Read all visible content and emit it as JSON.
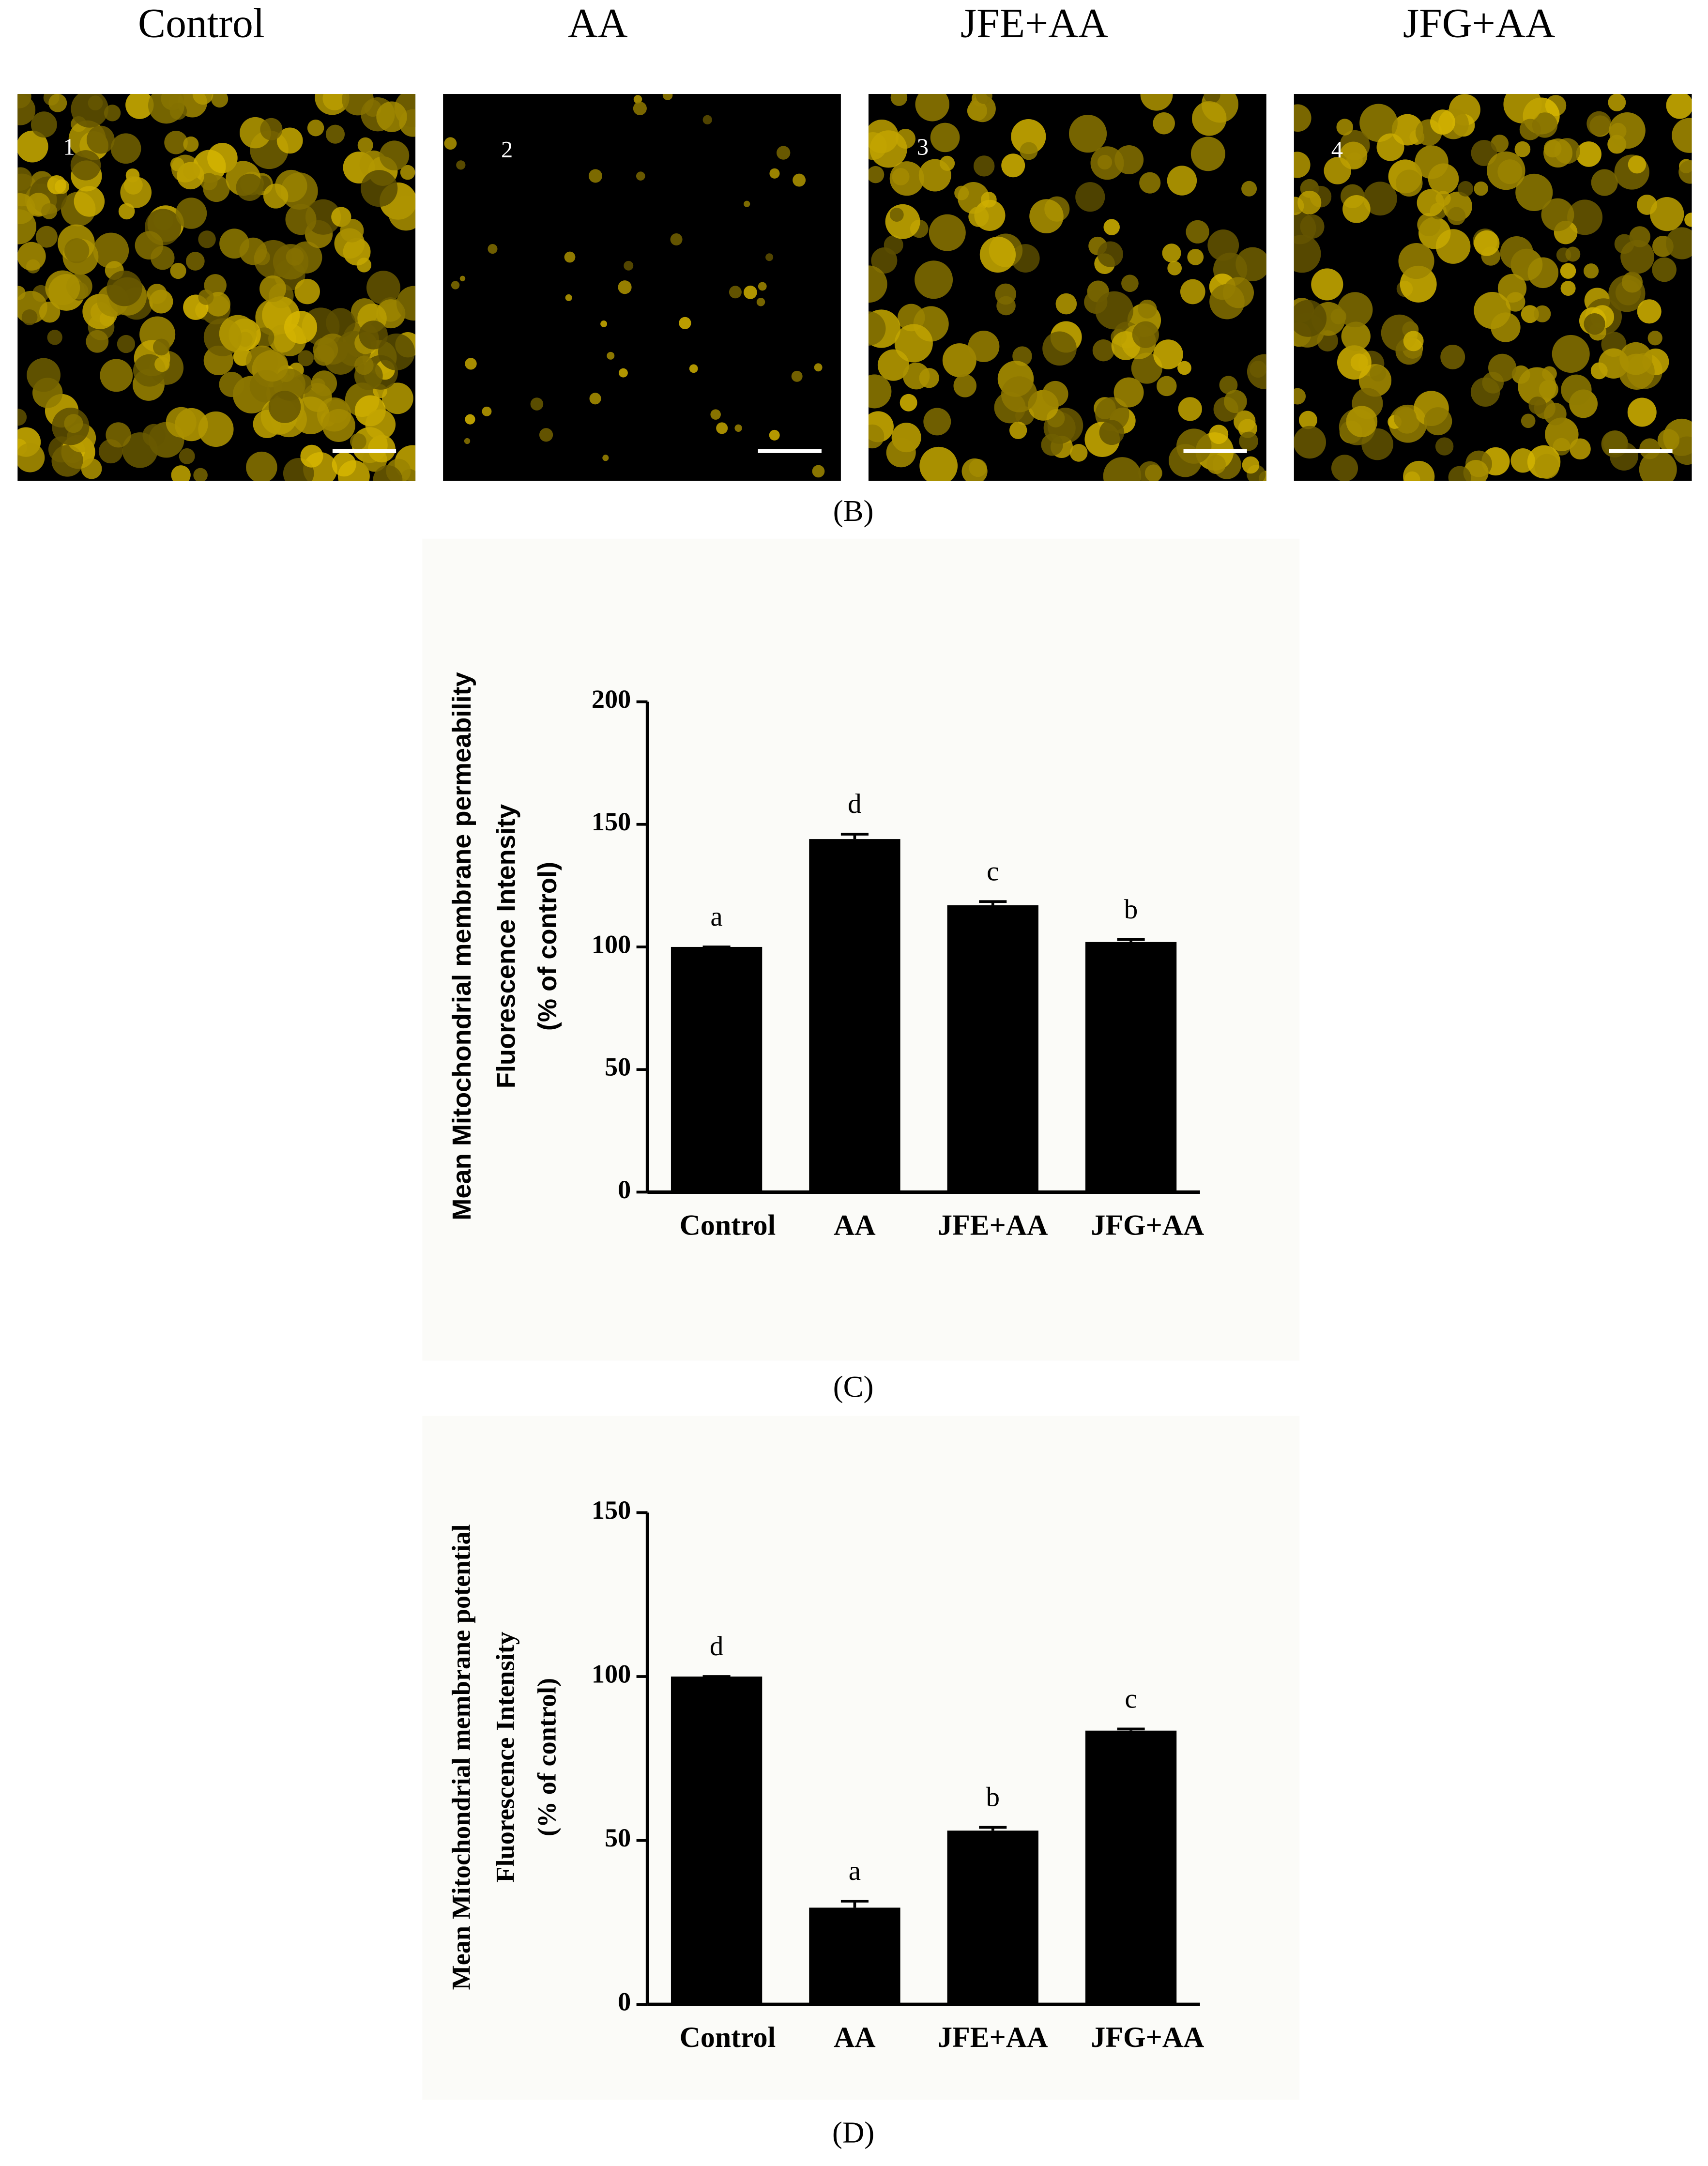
{
  "figure": {
    "image_titles": [
      "Control",
      "AA",
      "JFE+AA",
      "JFG+AA"
    ],
    "image_numbers": [
      "1",
      "2",
      "3",
      "4"
    ],
    "panel_labels": [
      "(B)",
      "(C)",
      "(D)"
    ]
  },
  "chart_data": [
    {
      "type": "bar",
      "ylabel": [
        "Mean Mitochondrial membrane permeability",
        "Fluorescence Intensity",
        "(% of control)"
      ],
      "categories": [
        "Control",
        "AA",
        "JFE+AA",
        "JFG+AA"
      ],
      "values": [
        100,
        144,
        117,
        102
      ],
      "errors": [
        0,
        2,
        1.5,
        1
      ],
      "significance_labels": [
        "a",
        "d",
        "c",
        "b"
      ],
      "color": "#000000",
      "ylim": [
        0,
        200
      ],
      "yticks": [
        0,
        50,
        100,
        150,
        200
      ]
    },
    {
      "type": "bar",
      "ylabel": [
        "Mean Mitochondrial membrane potential",
        "Fluorescence Intensity",
        "(% of control)"
      ],
      "categories": [
        "Control",
        "AA",
        "JFE+AA",
        "JFG+AA"
      ],
      "values": [
        100,
        29.5,
        53,
        83.5
      ],
      "errors": [
        0,
        2,
        1,
        0.5
      ],
      "significance_labels": [
        "d",
        "a",
        "b",
        "c"
      ],
      "color": "#000000",
      "ylim": [
        0,
        150
      ],
      "yticks": [
        0,
        50,
        100,
        150
      ]
    }
  ]
}
